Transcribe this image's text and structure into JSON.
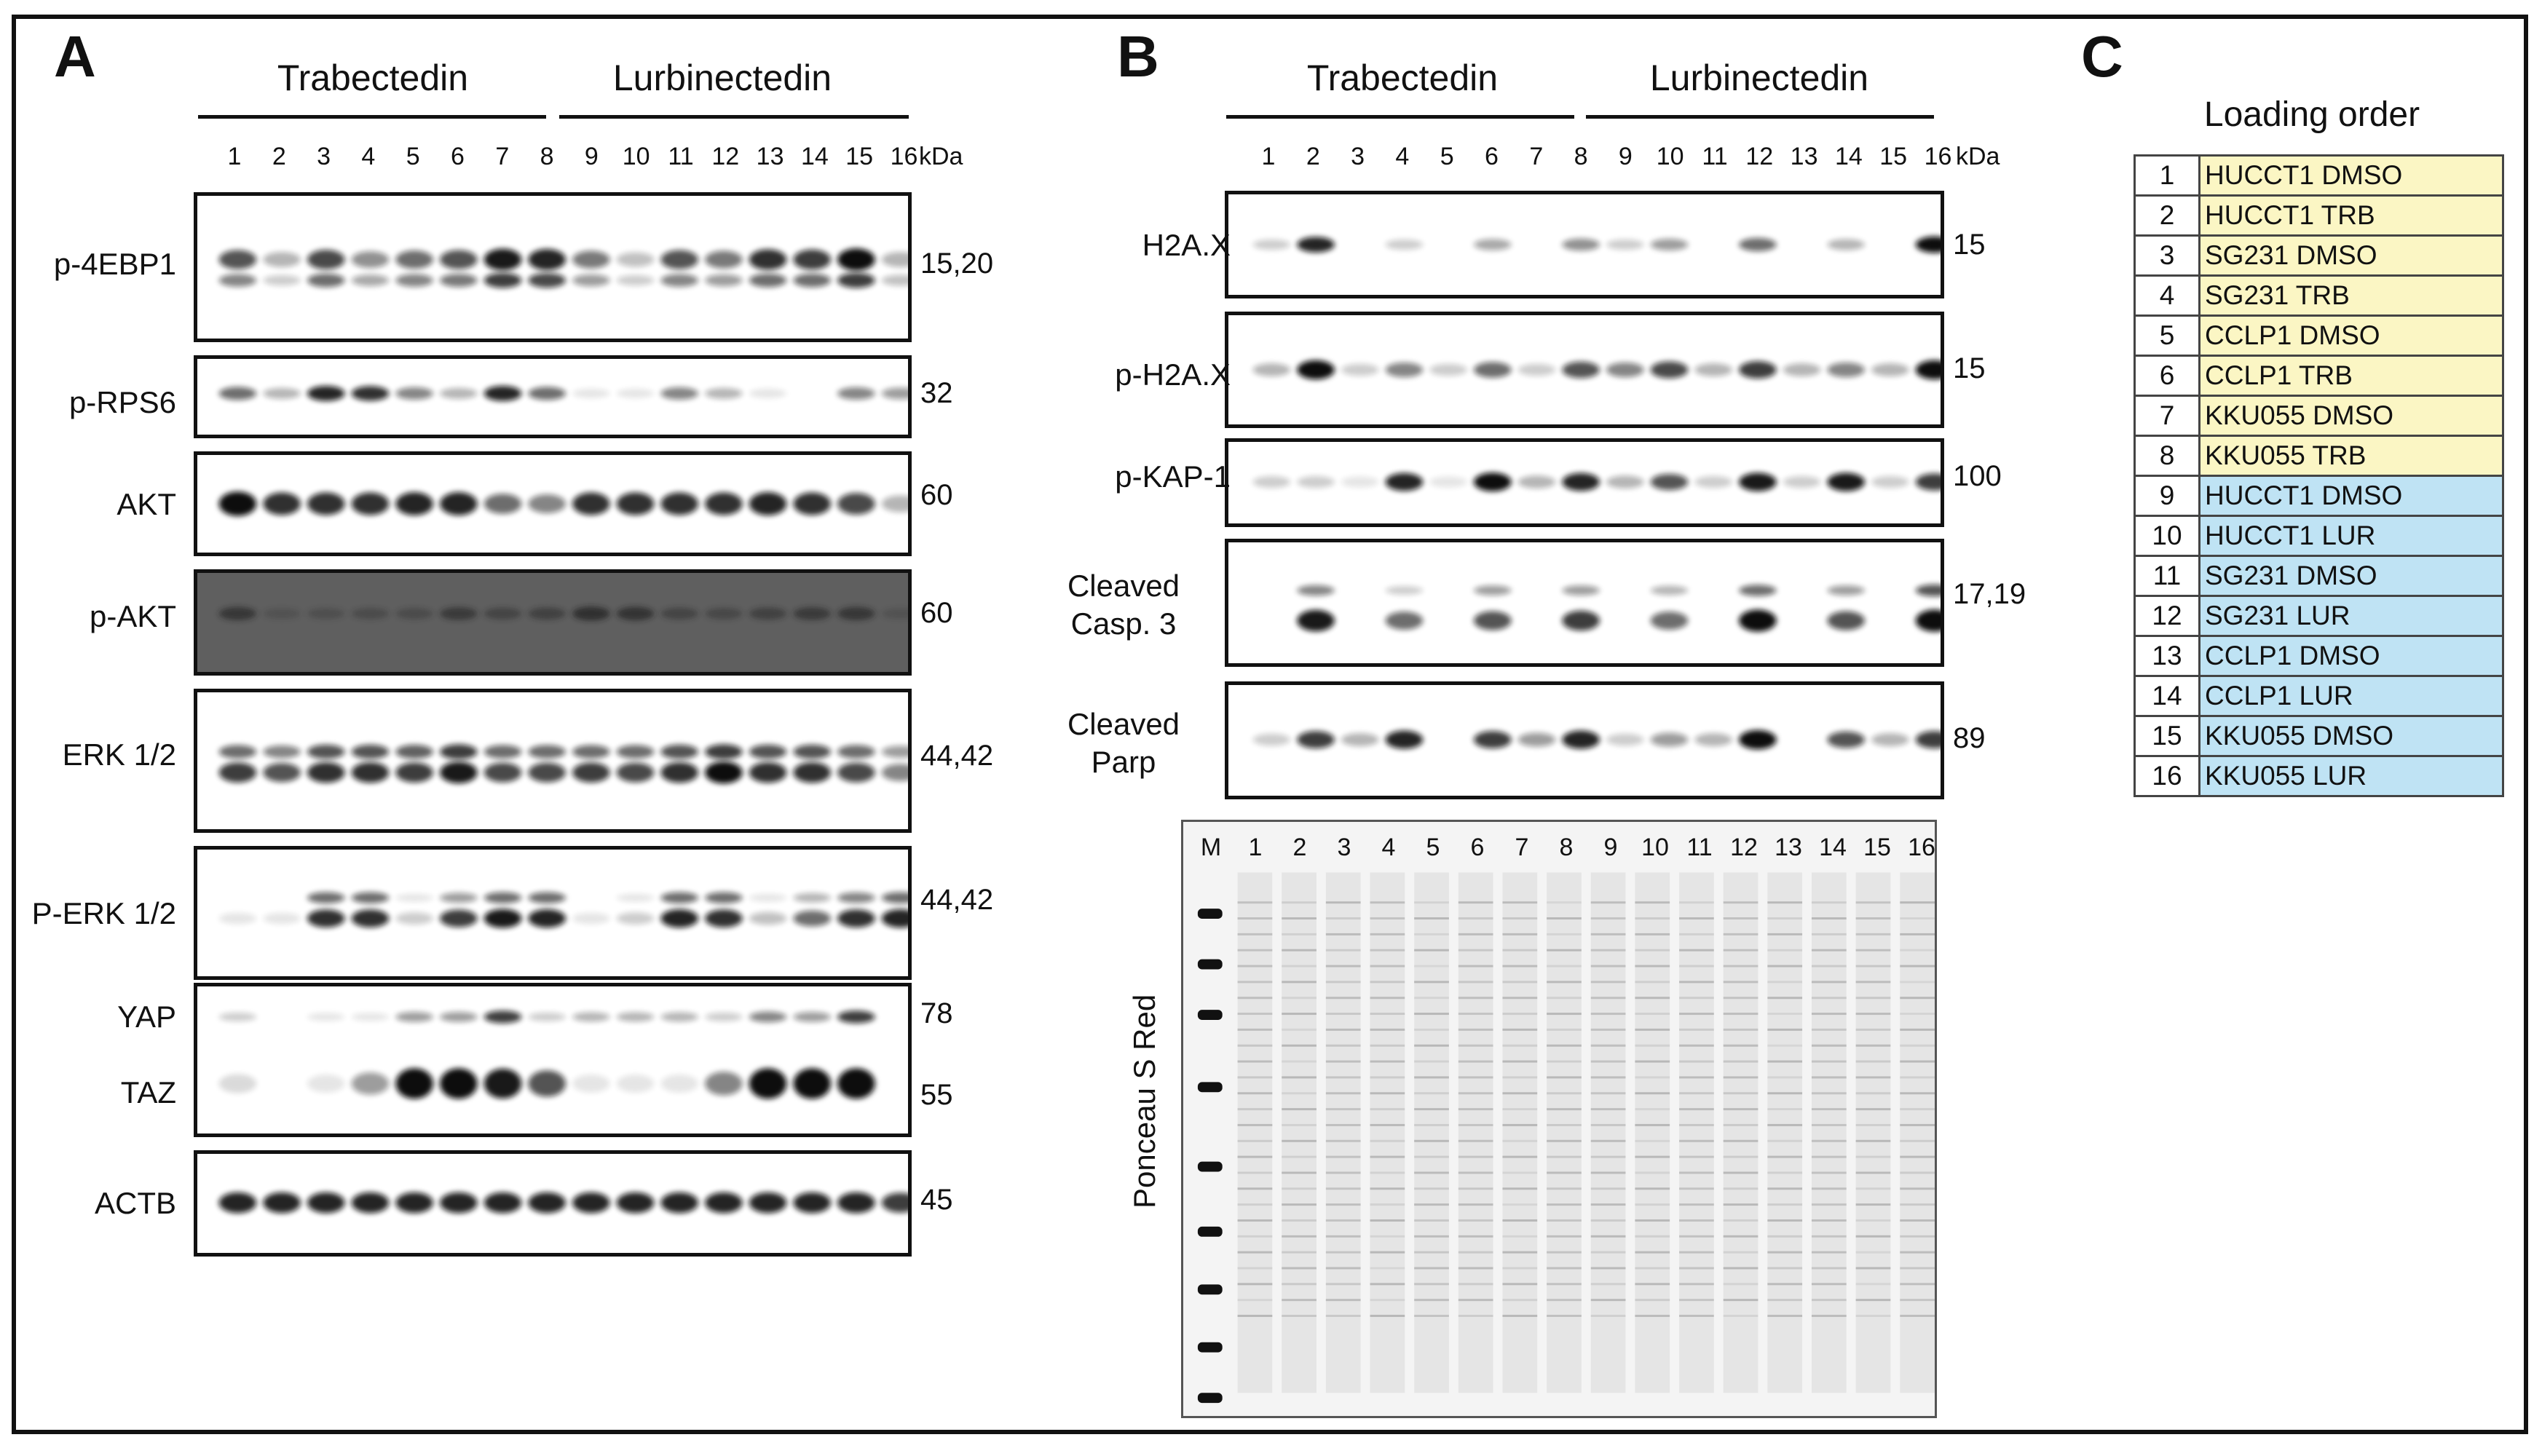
{
  "panels": {
    "a": "A",
    "b": "B",
    "c": "C"
  },
  "groups": {
    "trabectedin": "Trabectedin",
    "lurbinectedin": "Lurbinectedin"
  },
  "lanes": [
    "1",
    "2",
    "3",
    "4",
    "5",
    "6",
    "7",
    "8",
    "9",
    "10",
    "11",
    "12",
    "13",
    "14",
    "15",
    "16"
  ],
  "kda_label": "kDa",
  "panel_a": {
    "blots": [
      {
        "name": "p-4EBP1",
        "kda": "15,20"
      },
      {
        "name": "p-RPS6",
        "kda": "32"
      },
      {
        "name": "AKT",
        "kda": "60"
      },
      {
        "name": "p-AKT",
        "kda": "60"
      },
      {
        "name": "ERK 1/2",
        "kda": "44,42"
      },
      {
        "name": "P-ERK 1/2",
        "kda": "44,42"
      },
      {
        "name": "YAP",
        "kda": "78"
      },
      {
        "name": "TAZ",
        "kda": "55"
      },
      {
        "name": "ACTB",
        "kda": "45"
      }
    ]
  },
  "panel_b": {
    "blots": [
      {
        "name": "H2A.X",
        "kda": "15"
      },
      {
        "name": "p-H2A.X",
        "kda": "15"
      },
      {
        "name": "p-KAP-1",
        "kda": "100"
      },
      {
        "name_line1": "Cleaved",
        "name_line2": "Casp. 3",
        "kda": "17,19"
      },
      {
        "name_line1": "Cleaved",
        "name_line2": "Parp",
        "kda": "89"
      }
    ],
    "ponceau": {
      "label": "Ponceau S Red",
      "lanes": [
        "M",
        "1",
        "2",
        "3",
        "4",
        "5",
        "6",
        "7",
        "8",
        "9",
        "10",
        "11",
        "12",
        "13",
        "14",
        "15",
        "16"
      ]
    }
  },
  "panel_c": {
    "title": "Loading order",
    "rows": [
      {
        "num": "1",
        "label": "HUCCT1 DMSO",
        "group": "trb"
      },
      {
        "num": "2",
        "label": "HUCCT1 TRB",
        "group": "trb"
      },
      {
        "num": "3",
        "label": "SG231 DMSO",
        "group": "trb"
      },
      {
        "num": "4",
        "label": "SG231 TRB",
        "group": "trb"
      },
      {
        "num": "5",
        "label": "CCLP1 DMSO",
        "group": "trb"
      },
      {
        "num": "6",
        "label": "CCLP1 TRB",
        "group": "trb"
      },
      {
        "num": "7",
        "label": "KKU055 DMSO",
        "group": "trb"
      },
      {
        "num": "8",
        "label": "KKU055 TRB",
        "group": "trb"
      },
      {
        "num": "9",
        "label": "HUCCT1 DMSO",
        "group": "lur"
      },
      {
        "num": "10",
        "label": "HUCCT1 LUR",
        "group": "lur"
      },
      {
        "num": "11",
        "label": "SG231 DMSO",
        "group": "lur"
      },
      {
        "num": "12",
        "label": "SG231 LUR",
        "group": "lur"
      },
      {
        "num": "13",
        "label": "CCLP1 DMSO",
        "group": "lur"
      },
      {
        "num": "14",
        "label": "CCLP1 LUR",
        "group": "lur"
      },
      {
        "num": "15",
        "label": "KKU055 DMSO",
        "group": "lur"
      },
      {
        "num": "16",
        "label": "KKU055 LUR",
        "group": "lur"
      }
    ]
  }
}
